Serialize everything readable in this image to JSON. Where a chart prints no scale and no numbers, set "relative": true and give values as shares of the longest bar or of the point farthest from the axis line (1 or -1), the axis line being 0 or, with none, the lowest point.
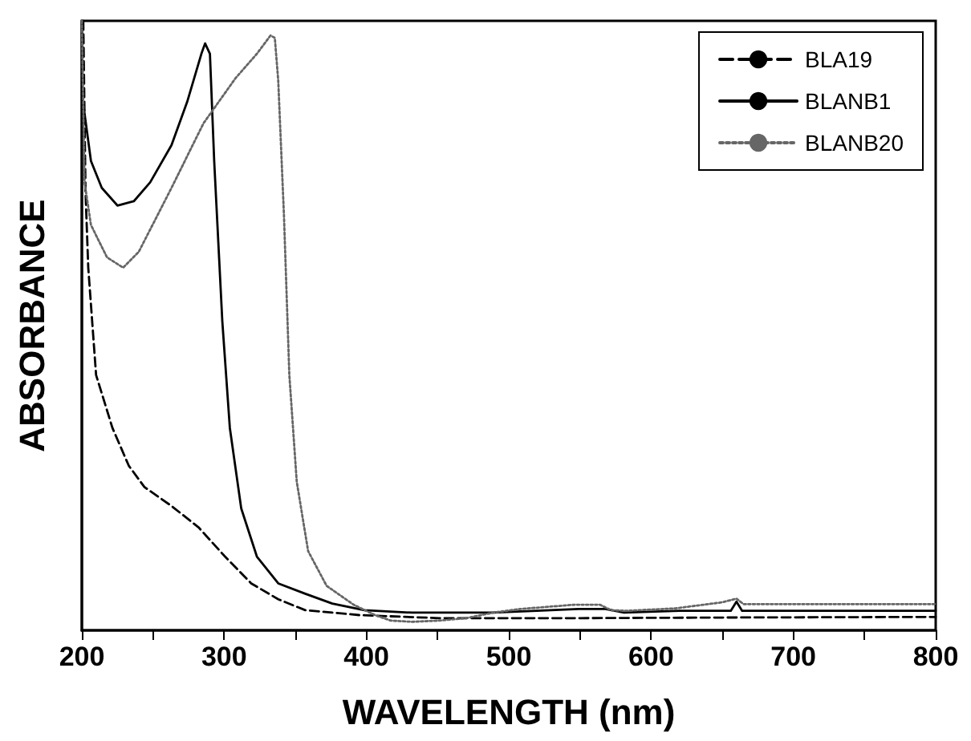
{
  "chart_data": {
    "type": "line",
    "relative": true,
    "xlabel": "WAVELENGTH (nm)",
    "ylabel": "ABSORBANCE",
    "xlim": [
      200,
      800
    ],
    "xticks": [
      200,
      {
        "value": 250,
        "label": null
      },
      300,
      {
        "value": 350,
        "label": null
      },
      400,
      {
        "value": 450,
        "label": null
      },
      500,
      {
        "value": 550,
        "label": null
      },
      600,
      {
        "value": 650,
        "label": null
      },
      700,
      {
        "value": 750,
        "label": null
      },
      800
    ],
    "legend": "top right",
    "grid": false,
    "marker": "none",
    "series": [
      {
        "name": "BLA19",
        "color": "#000000",
        "line_style": "dashed",
        "x": [
          201,
          202.6,
          204.5,
          210,
          221.5,
          233,
          244,
          263,
          282,
          300.6,
          319,
          338,
          357,
          395,
          451,
          550,
          650,
          800
        ],
        "values": [
          1.0,
          0.718,
          0.595,
          0.419,
          0.332,
          0.27,
          0.235,
          0.204,
          0.169,
          0.121,
          0.077,
          0.051,
          0.033,
          0.025,
          0.02,
          0.02,
          0.021,
          0.022
        ]
      },
      {
        "name": "BLANB1",
        "color": "#000000",
        "line_style": "solid",
        "x": [
          200.8,
          206.4,
          214,
          225,
          236.5,
          248,
          263,
          274,
          284,
          286.6,
          290,
          293,
          298.7,
          304,
          312,
          323,
          338,
          357,
          376,
          398.5,
          432,
          489,
          549,
          568,
          581,
          620,
          656,
          660,
          664,
          700,
          800
        ],
        "values": [
          0.867,
          0.77,
          0.726,
          0.697,
          0.704,
          0.735,
          0.796,
          0.867,
          0.946,
          0.963,
          0.946,
          0.77,
          0.507,
          0.332,
          0.2,
          0.121,
          0.077,
          0.06,
          0.044,
          0.033,
          0.029,
          0.029,
          0.035,
          0.035,
          0.029,
          0.032,
          0.032,
          0.047,
          0.032,
          0.032,
          0.032
        ]
      },
      {
        "name": "BLANB20",
        "color": "#666666",
        "line_style": "dotted",
        "x": [
          200,
          201.9,
          206.4,
          217.7,
          229,
          240,
          263,
          285.5,
          308,
          323,
          332.6,
          335.6,
          338,
          342,
          345.8,
          351,
          359,
          372,
          391,
          406,
          417,
          432,
          451,
          470,
          489,
          508,
          546,
          564,
          572,
          583,
          617,
          650,
          660,
          665,
          700,
          800
        ],
        "values": [
          1.0,
          0.735,
          0.665,
          0.612,
          0.595,
          0.621,
          0.726,
          0.832,
          0.906,
          0.946,
          0.976,
          0.972,
          0.902,
          0.682,
          0.419,
          0.244,
          0.13,
          0.073,
          0.042,
          0.025,
          0.016,
          0.014,
          0.016,
          0.02,
          0.029,
          0.035,
          0.042,
          0.042,
          0.033,
          0.032,
          0.036,
          0.046,
          0.052,
          0.043,
          0.043,
          0.043
        ]
      }
    ]
  }
}
